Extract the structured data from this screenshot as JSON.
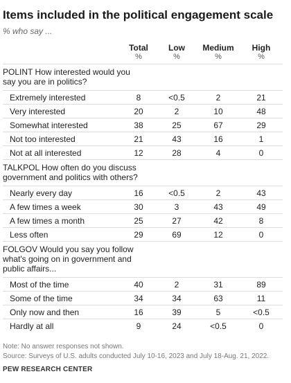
{
  "title": "Items included in the political engagement scale",
  "subtitle": "% who say ...",
  "columns": [
    "Total",
    "Low",
    "Medium",
    "High"
  ],
  "unit": "%",
  "questions": [
    {
      "text": "POLINT How interested would you say you are in politics?",
      "rows": [
        {
          "label": "Extremely interested",
          "values": [
            "8",
            "<0.5",
            "2",
            "21"
          ]
        },
        {
          "label": "Very interested",
          "values": [
            "20",
            "2",
            "10",
            "48"
          ]
        },
        {
          "label": "Somewhat interested",
          "values": [
            "38",
            "25",
            "67",
            "29"
          ]
        },
        {
          "label": "Not too interested",
          "values": [
            "21",
            "43",
            "16",
            "1"
          ]
        },
        {
          "label": "Not at all interested",
          "values": [
            "12",
            "28",
            "4",
            "0"
          ]
        }
      ]
    },
    {
      "text": "TALKPOL How often do you discuss government and politics with others?",
      "rows": [
        {
          "label": "Nearly every day",
          "values": [
            "16",
            "<0.5",
            "2",
            "43"
          ]
        },
        {
          "label": "A few times a week",
          "values": [
            "30",
            "3",
            "43",
            "49"
          ]
        },
        {
          "label": "A few times a month",
          "values": [
            "25",
            "27",
            "42",
            "8"
          ]
        },
        {
          "label": "Less often",
          "values": [
            "29",
            "69",
            "12",
            "0"
          ]
        }
      ]
    },
    {
      "text": "FOLGOV Would you say you follow what's going on in government and public affairs...",
      "rows": [
        {
          "label": "Most of the time",
          "values": [
            "40",
            "2",
            "31",
            "89"
          ]
        },
        {
          "label": "Some of the time",
          "values": [
            "34",
            "34",
            "63",
            "11"
          ]
        },
        {
          "label": "Only now and then",
          "values": [
            "16",
            "39",
            "5",
            "<0.5"
          ]
        },
        {
          "label": "Hardly at all",
          "values": [
            "9",
            "24",
            "<0.5",
            "0"
          ]
        }
      ]
    }
  ],
  "note": "Note: No answer responses not shown.",
  "source": "Source: Surveys of U.S. adults conducted July 10-16, 2023 and July 18-Aug. 21, 2022.",
  "brand": "PEW RESEARCH CENTER"
}
